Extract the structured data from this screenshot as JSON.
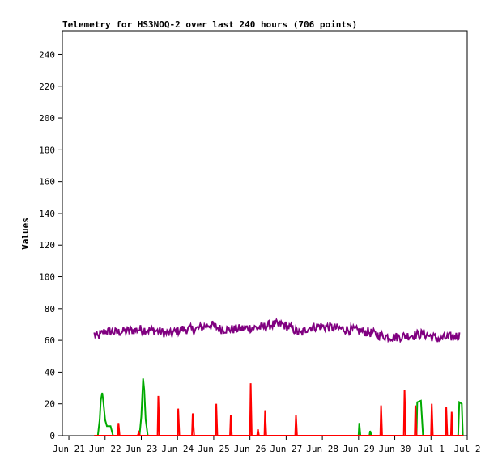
{
  "chart_data": {
    "type": "line",
    "title": "Telemetry for HS3NOQ-2 over last 240 hours (706 points)",
    "xlabel": "",
    "ylabel": "Values",
    "ylim": [
      0,
      255
    ],
    "y_ticks": [
      0,
      20,
      40,
      60,
      80,
      100,
      120,
      140,
      160,
      180,
      200,
      220,
      240
    ],
    "x_ticks": [
      {
        "label": "Jun 21",
        "day": 0
      },
      {
        "label": "Jun 22",
        "day": 1
      },
      {
        "label": "Jun 23",
        "day": 2
      },
      {
        "label": "Jun 24",
        "day": 3
      },
      {
        "label": "Jun 25",
        "day": 4
      },
      {
        "label": "Jun 26",
        "day": 5
      },
      {
        "label": "Jun 27",
        "day": 6
      },
      {
        "label": "Jun 28",
        "day": 7
      },
      {
        "label": "Jun 29",
        "day": 8
      },
      {
        "label": "Jun 30",
        "day": 9
      },
      {
        "label": "Jul 1",
        "day": 10
      },
      {
        "label": "Jul 2",
        "day": 11
      }
    ],
    "xlim_days": [
      -0.18,
      11.0
    ],
    "grid": false,
    "legend": "none",
    "series": [
      {
        "color": "#800080",
        "style": "noisy-line",
        "points": [
          [
            0.7,
            64
          ],
          [
            0.8,
            62
          ],
          [
            1.0,
            66
          ],
          [
            1.3,
            65
          ],
          [
            1.6,
            66
          ],
          [
            2.0,
            67
          ],
          [
            2.4,
            66
          ],
          [
            2.8,
            64
          ],
          [
            3.1,
            67
          ],
          [
            3.5,
            67
          ],
          [
            3.9,
            70
          ],
          [
            4.2,
            67
          ],
          [
            4.6,
            67
          ],
          [
            5.0,
            68
          ],
          [
            5.3,
            68
          ],
          [
            5.6,
            70
          ],
          [
            5.9,
            70
          ],
          [
            6.2,
            67
          ],
          [
            6.4,
            64
          ],
          [
            6.6,
            68
          ],
          [
            6.9,
            69
          ],
          [
            7.3,
            68
          ],
          [
            7.6,
            67
          ],
          [
            8.0,
            66
          ],
          [
            8.3,
            65
          ],
          [
            8.6,
            63
          ],
          [
            9.0,
            62
          ],
          [
            9.4,
            63
          ],
          [
            9.8,
            64
          ],
          [
            10.2,
            61
          ],
          [
            10.5,
            62
          ],
          [
            10.8,
            63
          ]
        ]
      },
      {
        "color": "#00aa00",
        "style": "spikes",
        "points": [
          [
            0.8,
            0
          ],
          [
            0.85,
            10
          ],
          [
            0.88,
            22
          ],
          [
            0.92,
            27
          ],
          [
            0.95,
            22
          ],
          [
            1.0,
            10
          ],
          [
            1.05,
            6
          ],
          [
            1.15,
            6
          ],
          [
            1.22,
            0
          ],
          [
            1.95,
            0
          ],
          [
            2.0,
            12
          ],
          [
            2.05,
            36
          ],
          [
            2.08,
            29
          ],
          [
            2.12,
            10
          ],
          [
            2.18,
            0
          ],
          [
            8.0,
            0
          ],
          [
            8.02,
            8
          ],
          [
            8.05,
            0
          ],
          [
            8.3,
            0
          ],
          [
            8.32,
            3
          ],
          [
            8.36,
            0
          ],
          [
            9.6,
            0
          ],
          [
            9.62,
            21
          ],
          [
            9.72,
            22
          ],
          [
            9.78,
            0
          ],
          [
            10.75,
            0
          ],
          [
            10.78,
            21
          ],
          [
            10.85,
            20
          ],
          [
            10.88,
            0
          ]
        ]
      },
      {
        "color": "#ff0000",
        "style": "spikes",
        "points": [
          [
            1.35,
            0
          ],
          [
            1.37,
            8
          ],
          [
            1.4,
            0
          ],
          [
            1.9,
            0
          ],
          [
            1.93,
            2
          ],
          [
            1.96,
            0
          ],
          [
            2.45,
            0
          ],
          [
            2.47,
            25
          ],
          [
            2.5,
            0
          ],
          [
            3.0,
            0
          ],
          [
            3.02,
            17
          ],
          [
            3.05,
            0
          ],
          [
            3.4,
            0
          ],
          [
            3.42,
            14
          ],
          [
            3.46,
            0
          ],
          [
            4.05,
            0
          ],
          [
            4.07,
            20
          ],
          [
            4.1,
            0
          ],
          [
            4.45,
            0
          ],
          [
            4.47,
            13
          ],
          [
            4.5,
            0
          ],
          [
            5.0,
            0
          ],
          [
            5.02,
            33
          ],
          [
            5.05,
            0
          ],
          [
            5.2,
            0
          ],
          [
            5.22,
            4
          ],
          [
            5.25,
            0
          ],
          [
            5.4,
            0
          ],
          [
            5.42,
            16
          ],
          [
            5.45,
            0
          ],
          [
            6.25,
            0
          ],
          [
            6.27,
            13
          ],
          [
            6.3,
            0
          ],
          [
            8.6,
            0
          ],
          [
            8.62,
            19
          ],
          [
            8.65,
            0
          ],
          [
            9.25,
            0
          ],
          [
            9.27,
            29
          ],
          [
            9.3,
            0
          ],
          [
            9.55,
            0
          ],
          [
            9.57,
            19
          ],
          [
            9.6,
            0
          ],
          [
            10.0,
            0
          ],
          [
            10.02,
            20
          ],
          [
            10.05,
            0
          ],
          [
            10.4,
            0
          ],
          [
            10.42,
            18
          ],
          [
            10.45,
            0
          ],
          [
            10.55,
            0
          ],
          [
            10.57,
            15
          ],
          [
            10.6,
            0
          ]
        ]
      }
    ]
  }
}
